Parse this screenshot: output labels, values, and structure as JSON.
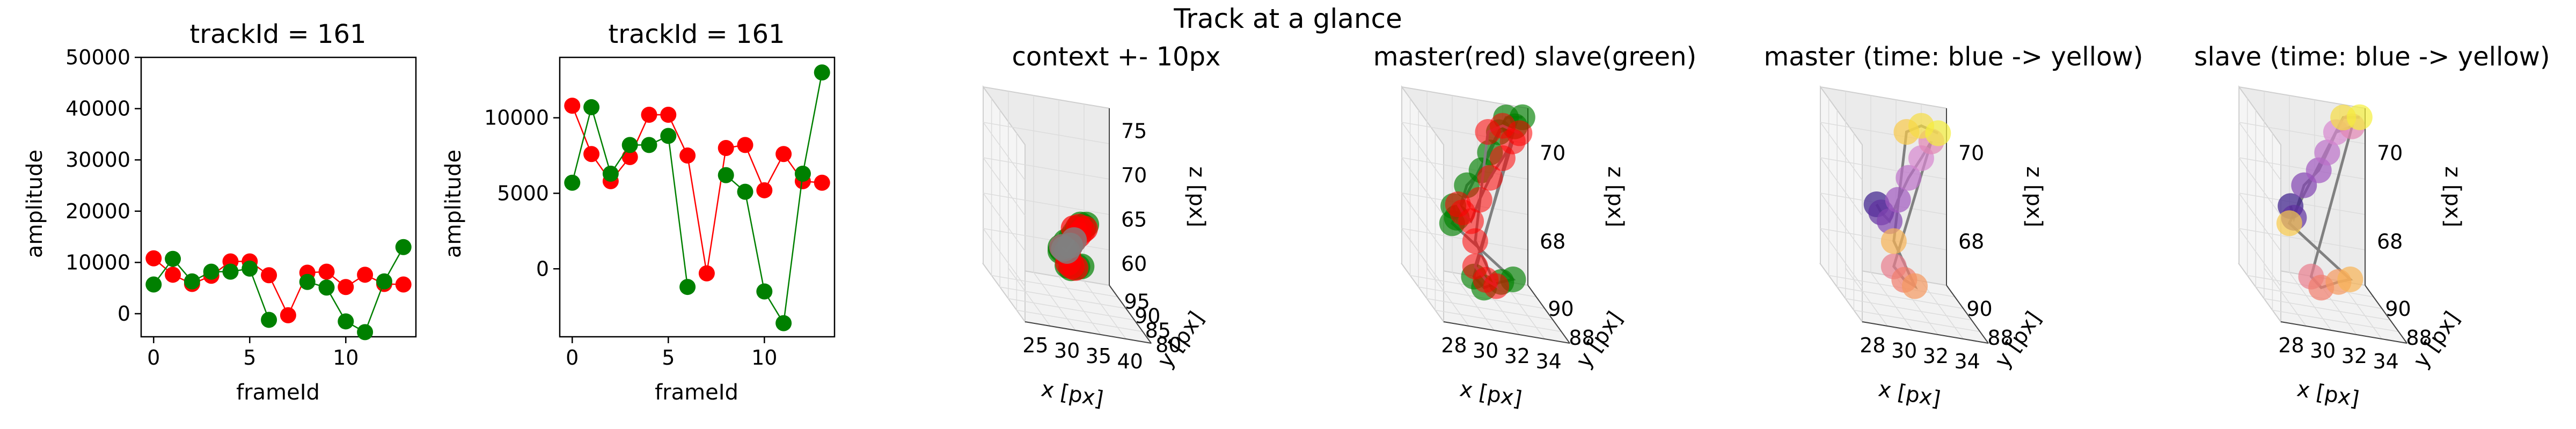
{
  "figure": {
    "suptitle": "Track at a glance"
  },
  "chart_data": [
    {
      "type": "line",
      "title": "trackId = 161",
      "xlabel": "frameId",
      "ylabel": "amplitude",
      "xlim": [
        -0.65,
        13.65
      ],
      "ylim": [
        -4500,
        50000
      ],
      "xticks": [
        0,
        5,
        10
      ],
      "yticks": [
        0,
        10000,
        20000,
        30000,
        40000,
        50000
      ],
      "x": [
        0,
        1,
        2,
        3,
        4,
        5,
        6,
        7,
        8,
        9,
        10,
        11,
        12,
        13
      ],
      "series": [
        {
          "color": "#ff0000",
          "values": [
            10800,
            7600,
            5800,
            7400,
            10200,
            10200,
            7500,
            -300,
            8000,
            8200,
            5200,
            7600,
            5800,
            5700
          ]
        },
        {
          "color": "#008000",
          "values": [
            5700,
            10700,
            6300,
            8200,
            8200,
            8800,
            -1200,
            null,
            6200,
            5100,
            -1500,
            -3600,
            6300,
            13000
          ]
        }
      ]
    },
    {
      "type": "line",
      "title": "trackId = 161",
      "xlabel": "frameId",
      "ylabel": "amplitude",
      "xlim": [
        -0.65,
        13.65
      ],
      "ylim": [
        -4500,
        14000
      ],
      "xticks": [
        0,
        5,
        10
      ],
      "yticks": [
        0,
        5000,
        10000
      ],
      "x": [
        0,
        1,
        2,
        3,
        4,
        5,
        6,
        7,
        8,
        9,
        10,
        11,
        12,
        13
      ],
      "series": [
        {
          "color": "#ff0000",
          "values": [
            10800,
            7600,
            5800,
            7400,
            10200,
            10200,
            7500,
            -300,
            8000,
            8200,
            5200,
            7600,
            5800,
            5700
          ]
        },
        {
          "color": "#008000",
          "values": [
            5700,
            10700,
            6300,
            8200,
            8200,
            8800,
            -1200,
            null,
            6200,
            5100,
            -1500,
            -3600,
            6300,
            13000
          ]
        }
      ]
    },
    {
      "type": "scatter",
      "title": "context +- 10px",
      "xlabel": "x [px]",
      "ylabel": "y [px]",
      "zlabel": "z [px]",
      "xticks": [
        "25",
        "30",
        "35",
        "40"
      ],
      "yticks": [
        "80",
        "85",
        "90",
        "95"
      ],
      "zticks": [
        "60",
        "65",
        "70",
        "75"
      ]
    },
    {
      "type": "scatter",
      "title": "master(red) slave(green)",
      "xlabel": "x [px]",
      "ylabel": "y [px]",
      "zlabel": "z [px]",
      "xticks": [
        "28",
        "30",
        "32",
        "34"
      ],
      "yticks": [
        "88",
        "90"
      ],
      "zticks": [
        "68",
        "70"
      ]
    },
    {
      "type": "scatter",
      "title": "master (time: blue -> yellow)",
      "xlabel": "x [px]",
      "ylabel": "y [px]",
      "zlabel": "z [px]",
      "xticks": [
        "28",
        "30",
        "32",
        "34"
      ],
      "yticks": [
        "88",
        "90"
      ],
      "zticks": [
        "68",
        "70"
      ]
    },
    {
      "type": "scatter",
      "title": "slave (time: blue -> yellow)",
      "xlabel": "x [px]",
      "ylabel": "y [px]",
      "zlabel": "z [px]",
      "xticks": [
        "28",
        "30",
        "32",
        "34"
      ],
      "yticks": [
        "88",
        "90"
      ],
      "zticks": [
        "68",
        "70"
      ]
    }
  ]
}
